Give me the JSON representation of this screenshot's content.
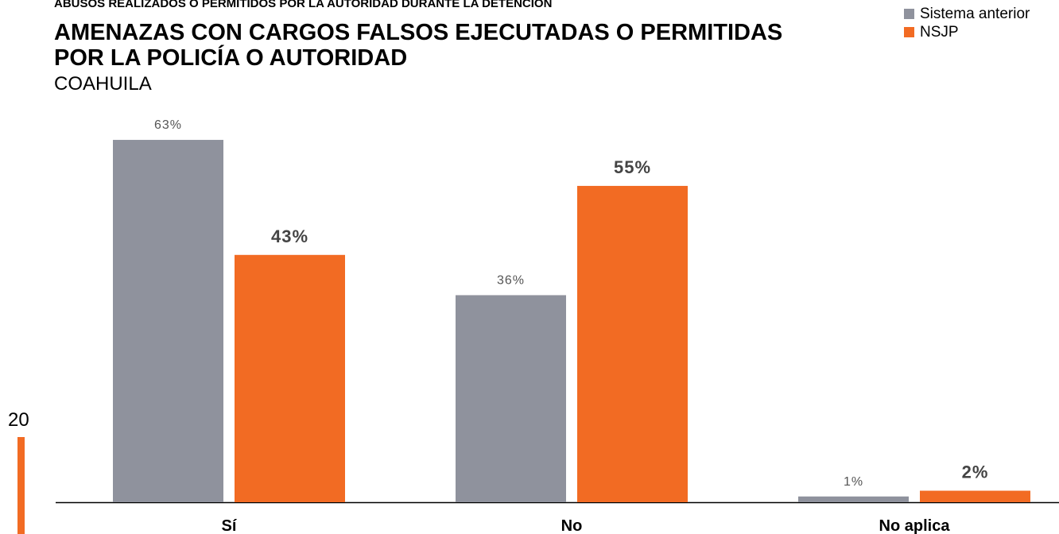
{
  "chart_data": {
    "type": "bar",
    "supertitle": "ABUSOS REALIZADOS O PERMITIDOS POR LA AUTORIDAD DURANTE LA DETENCIÓN",
    "title": [
      "AMENAZAS CON CARGOS FALSOS EJECUTADAS O PERMITIDAS",
      "POR LA POLICÍA O AUTORIDAD"
    ],
    "subtitle": "COAHUILA",
    "categories": [
      "Sí",
      "No",
      "No aplica"
    ],
    "series": [
      {
        "name": "Sistema anterior",
        "color": "#8f929d",
        "values": [
          63,
          36,
          1
        ],
        "value_labels": [
          "63%",
          "36%",
          "1%"
        ]
      },
      {
        "name": "NSJP",
        "color": "#f26b23",
        "values": [
          43,
          55,
          2
        ],
        "value_labels": [
          "43%",
          "55%",
          "2%"
        ]
      }
    ],
    "ylim": [
      0,
      80
    ],
    "legend": "top-right",
    "page_number": "20"
  }
}
